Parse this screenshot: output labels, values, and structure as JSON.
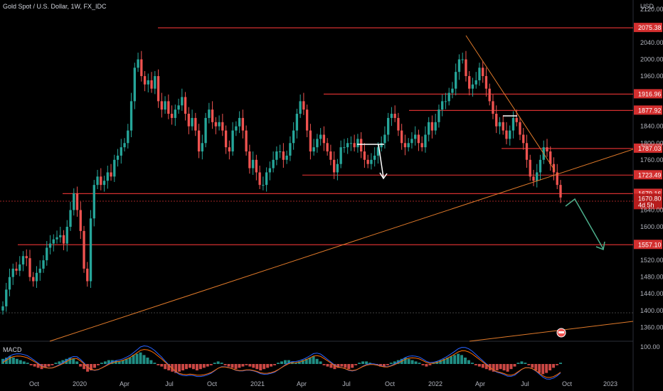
{
  "title": "Gold Spot / U.S. Dollar, 1W, FX_IDC",
  "currency_label": "USD",
  "macd_label": "MACD",
  "macd_axis_label": "100.00",
  "colors": {
    "background": "#000000",
    "up": "#26a69a",
    "down": "#ef5350",
    "level_line": "#d32f2f",
    "trend_line": "#e07a2a",
    "arrow_white": "#ffffff",
    "arrow_green": "#4caf8c",
    "macd_line": "#2962ff",
    "signal_line": "#ff6d00",
    "hist_up": "#26a69a",
    "hist_down": "#ef5350"
  },
  "chart_data": {
    "type": "candlestick",
    "y_axis_ticks": [
      "2120.00",
      "2040.00",
      "2000.00",
      "1960.00",
      "1840.00",
      "1800.00",
      "1760.00",
      "1640.00",
      "1600.00",
      "1520.00",
      "1480.00",
      "1440.00",
      "1400.00",
      "1360.00"
    ],
    "x_axis_ticks": [
      "Oct",
      "2020",
      "Apr",
      "Jul",
      "Oct",
      "2021",
      "Apr",
      "Jul",
      "Oct",
      "2022",
      "Apr",
      "Jul",
      "Oct",
      "2023"
    ],
    "ylim": [
      1330,
      2135
    ],
    "levels": [
      "2075.38",
      "1916.96",
      "1877.92",
      "1787.03",
      "1723.49",
      "1679.16",
      "1557.10"
    ],
    "current_price": "1670.80",
    "countdown": "4d 5h",
    "closes": [
      1410,
      1450,
      1480,
      1500,
      1495,
      1510,
      1530,
      1525,
      1480,
      1470,
      1490,
      1500,
      1520,
      1550,
      1560,
      1570,
      1575,
      1580,
      1560,
      1600,
      1640,
      1680,
      1640,
      1590,
      1500,
      1470,
      1620,
      1700,
      1720,
      1700,
      1710,
      1730,
      1720,
      1760,
      1770,
      1790,
      1800,
      1830,
      1900,
      1980,
      2000,
      1960,
      1940,
      1950,
      1930,
      1960,
      1900,
      1880,
      1900,
      1870,
      1860,
      1880,
      1890,
      1910,
      1870,
      1840,
      1860,
      1830,
      1780,
      1800,
      1860,
      1880,
      1850,
      1840,
      1850,
      1830,
      1790,
      1780,
      1830,
      1840,
      1860,
      1830,
      1780,
      1740,
      1760,
      1730,
      1700,
      1700,
      1730,
      1740,
      1760,
      1780,
      1780,
      1760,
      1770,
      1800,
      1830,
      1870,
      1900,
      1880,
      1830,
      1780,
      1790,
      1810,
      1820,
      1800,
      1780,
      1760,
      1730,
      1750,
      1790,
      1790,
      1800,
      1800,
      1790,
      1810,
      1780,
      1760,
      1750,
      1760,
      1770,
      1790,
      1800,
      1820,
      1860,
      1870,
      1860,
      1830,
      1800,
      1790,
      1800,
      1810,
      1820,
      1800,
      1790,
      1820,
      1850,
      1830,
      1850,
      1880,
      1900,
      1900,
      1920,
      1930,
      1970,
      2000,
      2000,
      1960,
      1930,
      1940,
      1950,
      1980,
      1960,
      1930,
      1900,
      1870,
      1840,
      1850,
      1830,
      1810,
      1830,
      1860,
      1850,
      1820,
      1800,
      1760,
      1720,
      1710,
      1730,
      1760,
      1790,
      1780,
      1750,
      1730,
      1700,
      1670
    ]
  },
  "macd_data": {
    "hist": [
      8,
      10,
      12,
      10,
      8,
      6,
      4,
      2,
      -2,
      -4,
      -6,
      -8,
      -6,
      -4,
      -2,
      2,
      4,
      6,
      8,
      10,
      8,
      4,
      -4,
      -8,
      -12,
      -10,
      -6,
      -2,
      2,
      4,
      6,
      6,
      5,
      4,
      6,
      8,
      10,
      14,
      16,
      18,
      14,
      10,
      6,
      2,
      -2,
      -4,
      -8,
      -10,
      -12,
      -14,
      -12,
      -10,
      -8,
      -6,
      -8,
      -10,
      -8,
      -6,
      -4,
      -2,
      2,
      4,
      2,
      -2,
      -4,
      -6,
      -8,
      -6,
      -4,
      -2,
      -4,
      -6,
      -8,
      -10,
      -8,
      -6,
      -4,
      -2,
      2,
      4,
      6,
      6,
      4,
      2,
      4,
      6,
      8,
      10,
      12,
      8,
      4,
      -2,
      -4,
      -6,
      -8,
      -6,
      -4,
      -6,
      -8,
      -6,
      -2,
      2,
      4,
      4,
      2,
      0,
      -2,
      -4,
      -4,
      -2,
      2,
      4,
      6,
      8,
      10,
      8,
      6,
      4,
      2,
      -2,
      -4,
      -2,
      2,
      4,
      6,
      8,
      10,
      12,
      14,
      16,
      14,
      10,
      6,
      2,
      -2,
      -4,
      -6,
      -8,
      -10,
      -12,
      -10,
      -8,
      -10,
      -12,
      -8,
      -4,
      2,
      4,
      2,
      -2,
      -6,
      -10,
      -14,
      -16,
      -14,
      -10,
      -6,
      -2,
      2
    ]
  }
}
